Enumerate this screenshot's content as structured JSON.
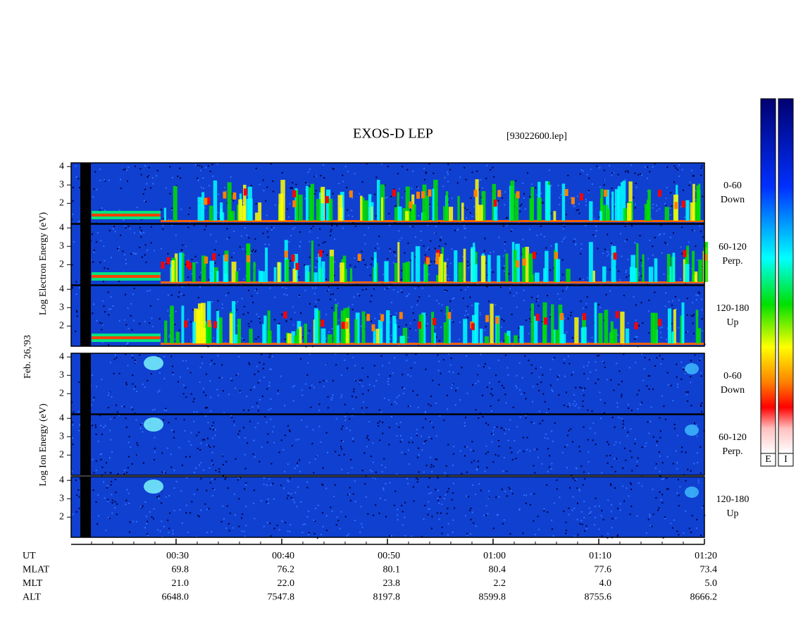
{
  "title": "EXOS-D LEP",
  "file": "[93022600.lep]",
  "date": "Feb. 26,'93",
  "electron": {
    "ylabel": "Log Electron Energy (eV)",
    "ylim": [
      0.9,
      4.2
    ],
    "yticks": [
      2,
      3,
      4
    ],
    "panels": [
      {
        "angle": "0-60",
        "direction": "Down"
      },
      {
        "angle": "60-120",
        "direction": "Perp."
      },
      {
        "angle": "120-180",
        "direction": "Up"
      }
    ]
  },
  "ion": {
    "ylabel": "Log Ion Energy (eV)",
    "ylim": [
      0.9,
      4.2
    ],
    "yticks": [
      2,
      3,
      4
    ],
    "panels": [
      {
        "angle": "0-60",
        "direction": "Down"
      },
      {
        "angle": "60-120",
        "direction": "Perp."
      },
      {
        "angle": "120-180",
        "direction": "Up"
      }
    ]
  },
  "xlim": [
    20.07,
    80
  ],
  "xticks": [
    {
      "value": 30,
      "label": "00:30"
    },
    {
      "value": 40,
      "label": "00:40"
    },
    {
      "value": 50,
      "label": "00:50"
    },
    {
      "value": 60,
      "label": "01:00"
    },
    {
      "value": 70,
      "label": "01:10"
    },
    {
      "value": 80,
      "label": "01:20"
    }
  ],
  "footer": [
    {
      "label": "UT"
    },
    {
      "label": "MLAT",
      "values": [
        "69.8",
        "76.2",
        "80.1",
        "80.4",
        "77.6",
        "73.4"
      ]
    },
    {
      "label": "MLT",
      "values": [
        "21.0",
        "22.0",
        "23.8",
        "2.2",
        "4.0",
        "5.0"
      ]
    },
    {
      "label": "ALT",
      "values": [
        "6648.0",
        "7547.8",
        "8197.8",
        "8599.8",
        "8755.6",
        "8666.2"
      ]
    }
  ],
  "colorbars": [
    "E",
    "I"
  ]
}
